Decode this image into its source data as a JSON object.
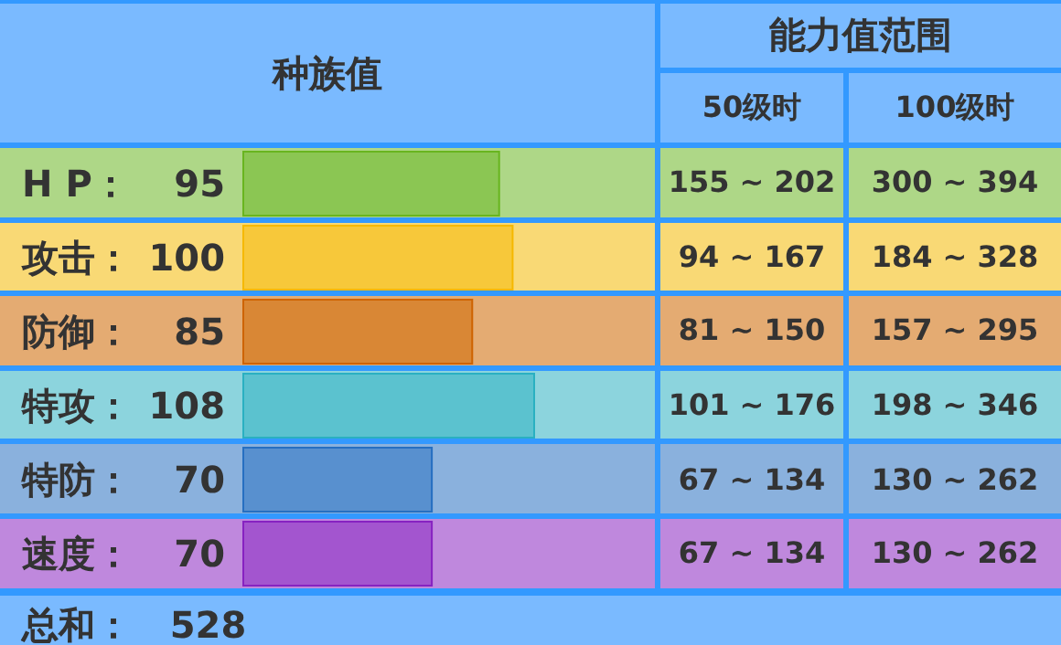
{
  "chart_data": {
    "type": "bar",
    "orientation": "horizontal",
    "title": "种族值",
    "categories": [
      "H P",
      "攻击",
      "防御",
      "特攻",
      "特防",
      "速度"
    ],
    "values": [
      95,
      100,
      85,
      108,
      70,
      70
    ],
    "colors": [
      "#8bc653",
      "#f7c83a",
      "#d98735",
      "#5bc2cf",
      "#5890cf",
      "#a355cf"
    ],
    "data_labels": true,
    "annotations": [
      "能力值范围",
      "50级时",
      "100级时",
      "155 ~ 202",
      "300 ~ 394",
      "94 ~ 167",
      "184 ~ 328",
      "81 ~ 150",
      "157 ~ 295",
      "101 ~ 176",
      "198 ~ 346",
      "67 ~ 134",
      "130 ~ 262",
      "67 ~ 134",
      "130 ~ 262",
      "总和：   528",
      "："
    ]
  }
}
